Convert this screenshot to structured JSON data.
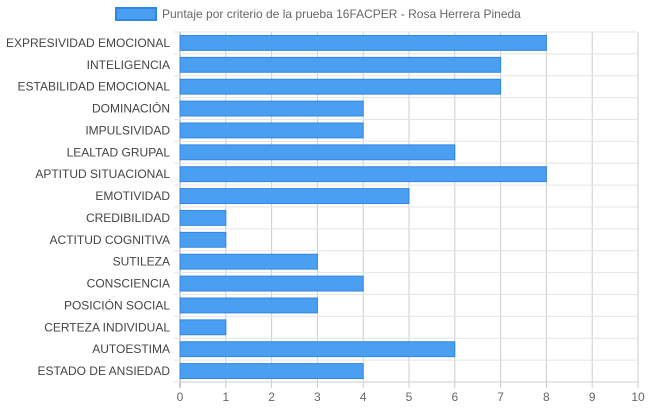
{
  "chart_data": {
    "type": "bar",
    "orientation": "horizontal",
    "categories": [
      "EXPRESIVIDAD EMOCIONAL",
      "INTELIGENCIA",
      "ESTABILIDAD EMOCIONAL",
      "DOMINACIÓN",
      "IMPULSIVIDAD",
      "LEALTAD GRUPAL",
      "APTITUD SITUACIONAL",
      "EMOTIVIDAD",
      "CREDIBILIDAD",
      "ACTITUD COGNITIVA",
      "SUTILEZA",
      "CONSCIENCIA",
      "POSICIÓN SOCIAL",
      "CERTEZA INDIVIDUAL",
      "AUTOESTIMA",
      "ESTADO DE ANSIEDAD"
    ],
    "series": [
      {
        "name": "Puntaje por criterio de la prueba 16FACPER - Rosa Herrera Pineda",
        "values": [
          8,
          7,
          7,
          4,
          4,
          6,
          8,
          5,
          1,
          1,
          3,
          4,
          3,
          1,
          6,
          4
        ],
        "color": "#4a9ff0",
        "border_color": "#2f86e6"
      }
    ],
    "xlim": [
      0,
      10
    ],
    "x_ticks": [
      "0",
      "1",
      "2",
      "3",
      "4",
      "5",
      "6",
      "7",
      "8",
      "9",
      "10"
    ],
    "grid": true,
    "legend_position": "top"
  }
}
